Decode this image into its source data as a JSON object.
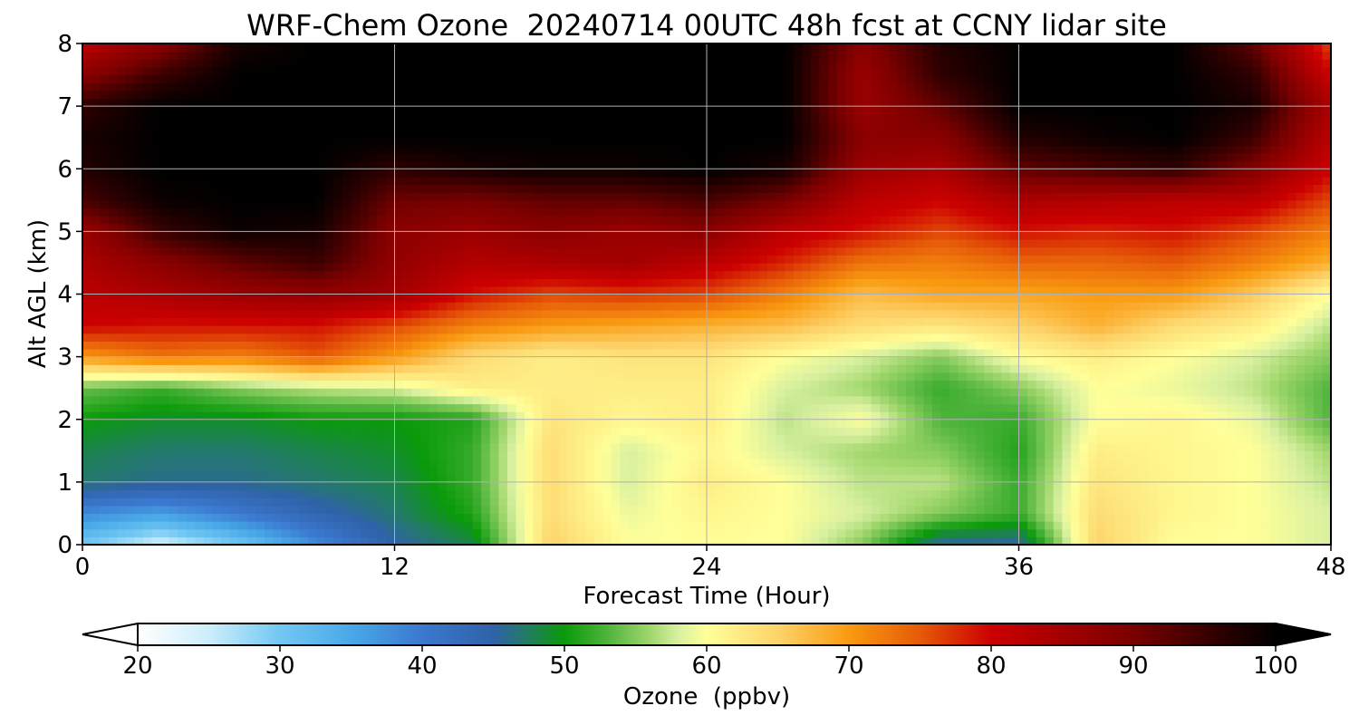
{
  "chart_data": {
    "type": "heatmap",
    "title": "WRF-Chem Ozone  20240714 00UTC 48h fcst at CCNY lidar site",
    "xlabel": "Forecast Time (Hour)",
    "ylabel": "Alt AGL (km)",
    "xlim": [
      0,
      48
    ],
    "ylim": [
      0,
      8
    ],
    "xticks": [
      0,
      12,
      24,
      36,
      48
    ],
    "yticks": [
      0,
      1,
      2,
      3,
      4,
      5,
      6,
      7,
      8
    ],
    "grid": true,
    "colorbar": {
      "label": "Ozone  (ppbv)",
      "range": [
        20,
        100
      ],
      "ticks": [
        20,
        30,
        40,
        50,
        60,
        70,
        80,
        90,
        100
      ],
      "extend": "both",
      "orientation": "horizontal",
      "stops": [
        {
          "v": 20,
          "c": "#ffffff"
        },
        {
          "v": 25,
          "c": "#cdeefc"
        },
        {
          "v": 30,
          "c": "#72c7f3"
        },
        {
          "v": 35,
          "c": "#48a9e8"
        },
        {
          "v": 40,
          "c": "#3b78cf"
        },
        {
          "v": 45,
          "c": "#2f62a8"
        },
        {
          "v": 47,
          "c": "#24786e"
        },
        {
          "v": 50,
          "c": "#0a9a0a"
        },
        {
          "v": 53,
          "c": "#4fb43c"
        },
        {
          "v": 56,
          "c": "#9fd66c"
        },
        {
          "v": 58,
          "c": "#d8f0a0"
        },
        {
          "v": 60,
          "c": "#ffff99"
        },
        {
          "v": 65,
          "c": "#fdd36a"
        },
        {
          "v": 70,
          "c": "#f99a10"
        },
        {
          "v": 75,
          "c": "#e65a08"
        },
        {
          "v": 80,
          "c": "#cc0000"
        },
        {
          "v": 85,
          "c": "#a30000"
        },
        {
          "v": 90,
          "c": "#7a0000"
        },
        {
          "v": 95,
          "c": "#3a0000"
        },
        {
          "v": 100,
          "c": "#000000"
        }
      ]
    },
    "x_hours": [
      0,
      3,
      6,
      9,
      12,
      15,
      18,
      21,
      24,
      27,
      30,
      33,
      36,
      39,
      42,
      45,
      48
    ],
    "z_levels_km": [
      0,
      0.5,
      1,
      1.5,
      2,
      2.5,
      3,
      3.5,
      4,
      4.5,
      5,
      5.5,
      6,
      6.5,
      7,
      7.5,
      8
    ],
    "ozone_ppbv": [
      [
        30,
        24,
        30,
        38,
        45,
        48,
        65,
        60,
        60,
        60,
        55,
        45,
        45,
        65,
        60,
        60,
        58
      ],
      [
        38,
        36,
        40,
        44,
        47,
        51,
        64,
        59,
        61,
        60,
        58,
        55,
        52,
        64,
        61,
        60,
        58
      ],
      [
        47,
        46,
        46,
        47,
        48,
        52,
        64,
        58,
        62,
        60,
        57,
        57,
        52,
        63,
        61,
        60,
        57
      ],
      [
        48,
        47,
        47,
        48,
        49,
        52,
        64,
        58,
        61,
        58,
        56,
        55,
        51,
        62,
        61,
        60,
        56
      ],
      [
        50,
        49,
        49,
        50,
        50,
        51,
        63,
        61,
        62,
        57,
        60,
        53,
        52,
        60,
        61,
        59,
        53
      ],
      [
        54,
        52,
        55,
        57,
        58,
        62,
        62,
        62,
        62,
        58,
        56,
        52,
        55,
        60,
        59,
        57,
        53
      ],
      [
        70,
        73,
        72,
        75,
        70,
        64,
        62,
        63,
        63,
        60,
        58,
        55,
        60,
        62,
        60,
        58,
        55
      ],
      [
        80,
        79,
        79,
        79,
        76,
        72,
        70,
        69,
        68,
        67,
        64,
        63,
        65,
        68,
        64,
        62,
        57
      ],
      [
        82,
        84,
        86,
        87,
        85,
        79,
        76,
        77,
        76,
        72,
        67,
        69,
        69,
        70,
        70,
        66,
        60
      ],
      [
        84,
        88,
        92,
        95,
        87,
        83,
        84,
        85,
        82,
        78,
        73,
        72,
        74,
        74,
        75,
        72,
        68
      ],
      [
        86,
        95,
        99,
        98,
        88,
        86,
        88,
        86,
        88,
        82,
        79,
        76,
        79,
        78,
        79,
        76,
        72
      ],
      [
        94,
        99,
        100,
        100,
        91,
        90,
        92,
        92,
        94,
        90,
        82,
        80,
        84,
        83,
        82,
        82,
        76
      ],
      [
        97,
        100,
        100,
        100,
        96,
        98,
        99,
        99,
        100,
        98,
        86,
        84,
        92,
        94,
        96,
        89,
        80
      ],
      [
        98,
        100,
        100,
        100,
        100,
        100,
        100,
        100,
        100,
        100,
        88,
        88,
        97,
        99,
        100,
        95,
        82
      ],
      [
        96,
        100,
        100,
        100,
        100,
        100,
        100,
        100,
        100,
        100,
        86,
        92,
        100,
        100,
        100,
        98,
        84
      ],
      [
        88,
        95,
        100,
        100,
        100,
        100,
        100,
        100,
        100,
        100,
        86,
        96,
        100,
        100,
        100,
        96,
        80
      ],
      [
        82,
        88,
        98,
        100,
        100,
        100,
        100,
        100,
        100,
        100,
        88,
        97,
        100,
        100,
        100,
        92,
        76
      ]
    ]
  }
}
